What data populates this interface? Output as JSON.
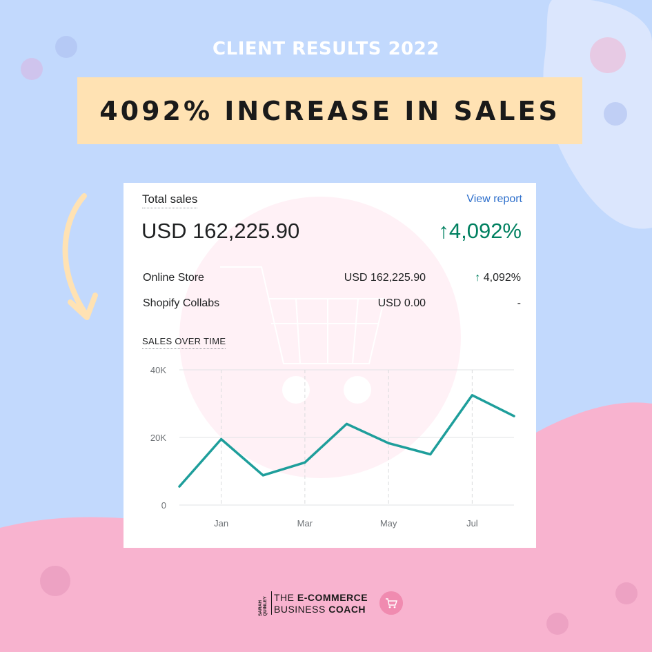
{
  "header": "CLIENT RESULTS 2022",
  "banner": "4092% INCREASE IN SALES",
  "card": {
    "label": "Total sales",
    "view_report": "View report",
    "total": "USD 162,225.90",
    "change_arrow": "↑",
    "change": "4,092%",
    "rows": [
      {
        "name": "Online Store",
        "amount": "USD 162,225.90",
        "arrow": "↑",
        "change": "4,092%"
      },
      {
        "name": "Shopify Collabs",
        "amount": "USD 0.00",
        "arrow": "",
        "change": "-"
      }
    ],
    "sales_over_time": "SALES OVER TIME"
  },
  "chart_data": {
    "type": "line",
    "ylim": [
      0,
      40000
    ],
    "y_ticks": [
      {
        "value": 0,
        "label": "0"
      },
      {
        "value": 20000,
        "label": "20K"
      },
      {
        "value": 40000,
        "label": "40K"
      }
    ],
    "x_ticks": [
      {
        "index": 1,
        "label": "Jan"
      },
      {
        "index": 3,
        "label": "Mar"
      },
      {
        "index": 5,
        "label": "May"
      },
      {
        "index": 7,
        "label": "Jul"
      }
    ],
    "values": [
      5500,
      19500,
      8800,
      12600,
      24000,
      18300,
      15000,
      32500,
      26300
    ],
    "line_color": "#1e9e9b",
    "grid": true
  },
  "logo": {
    "side": "SARAH QUINLEY",
    "line1_a": "THE ",
    "line1_b": "E-COMMERCE",
    "line2_a": "BUSINESS ",
    "line2_b": "COACH"
  },
  "colors": {
    "background_blue": "#c2d9fd",
    "background_pink": "#f8b3cf",
    "banner": "#ffe2b3",
    "positive": "#008060",
    "link": "#2c6ecb"
  }
}
